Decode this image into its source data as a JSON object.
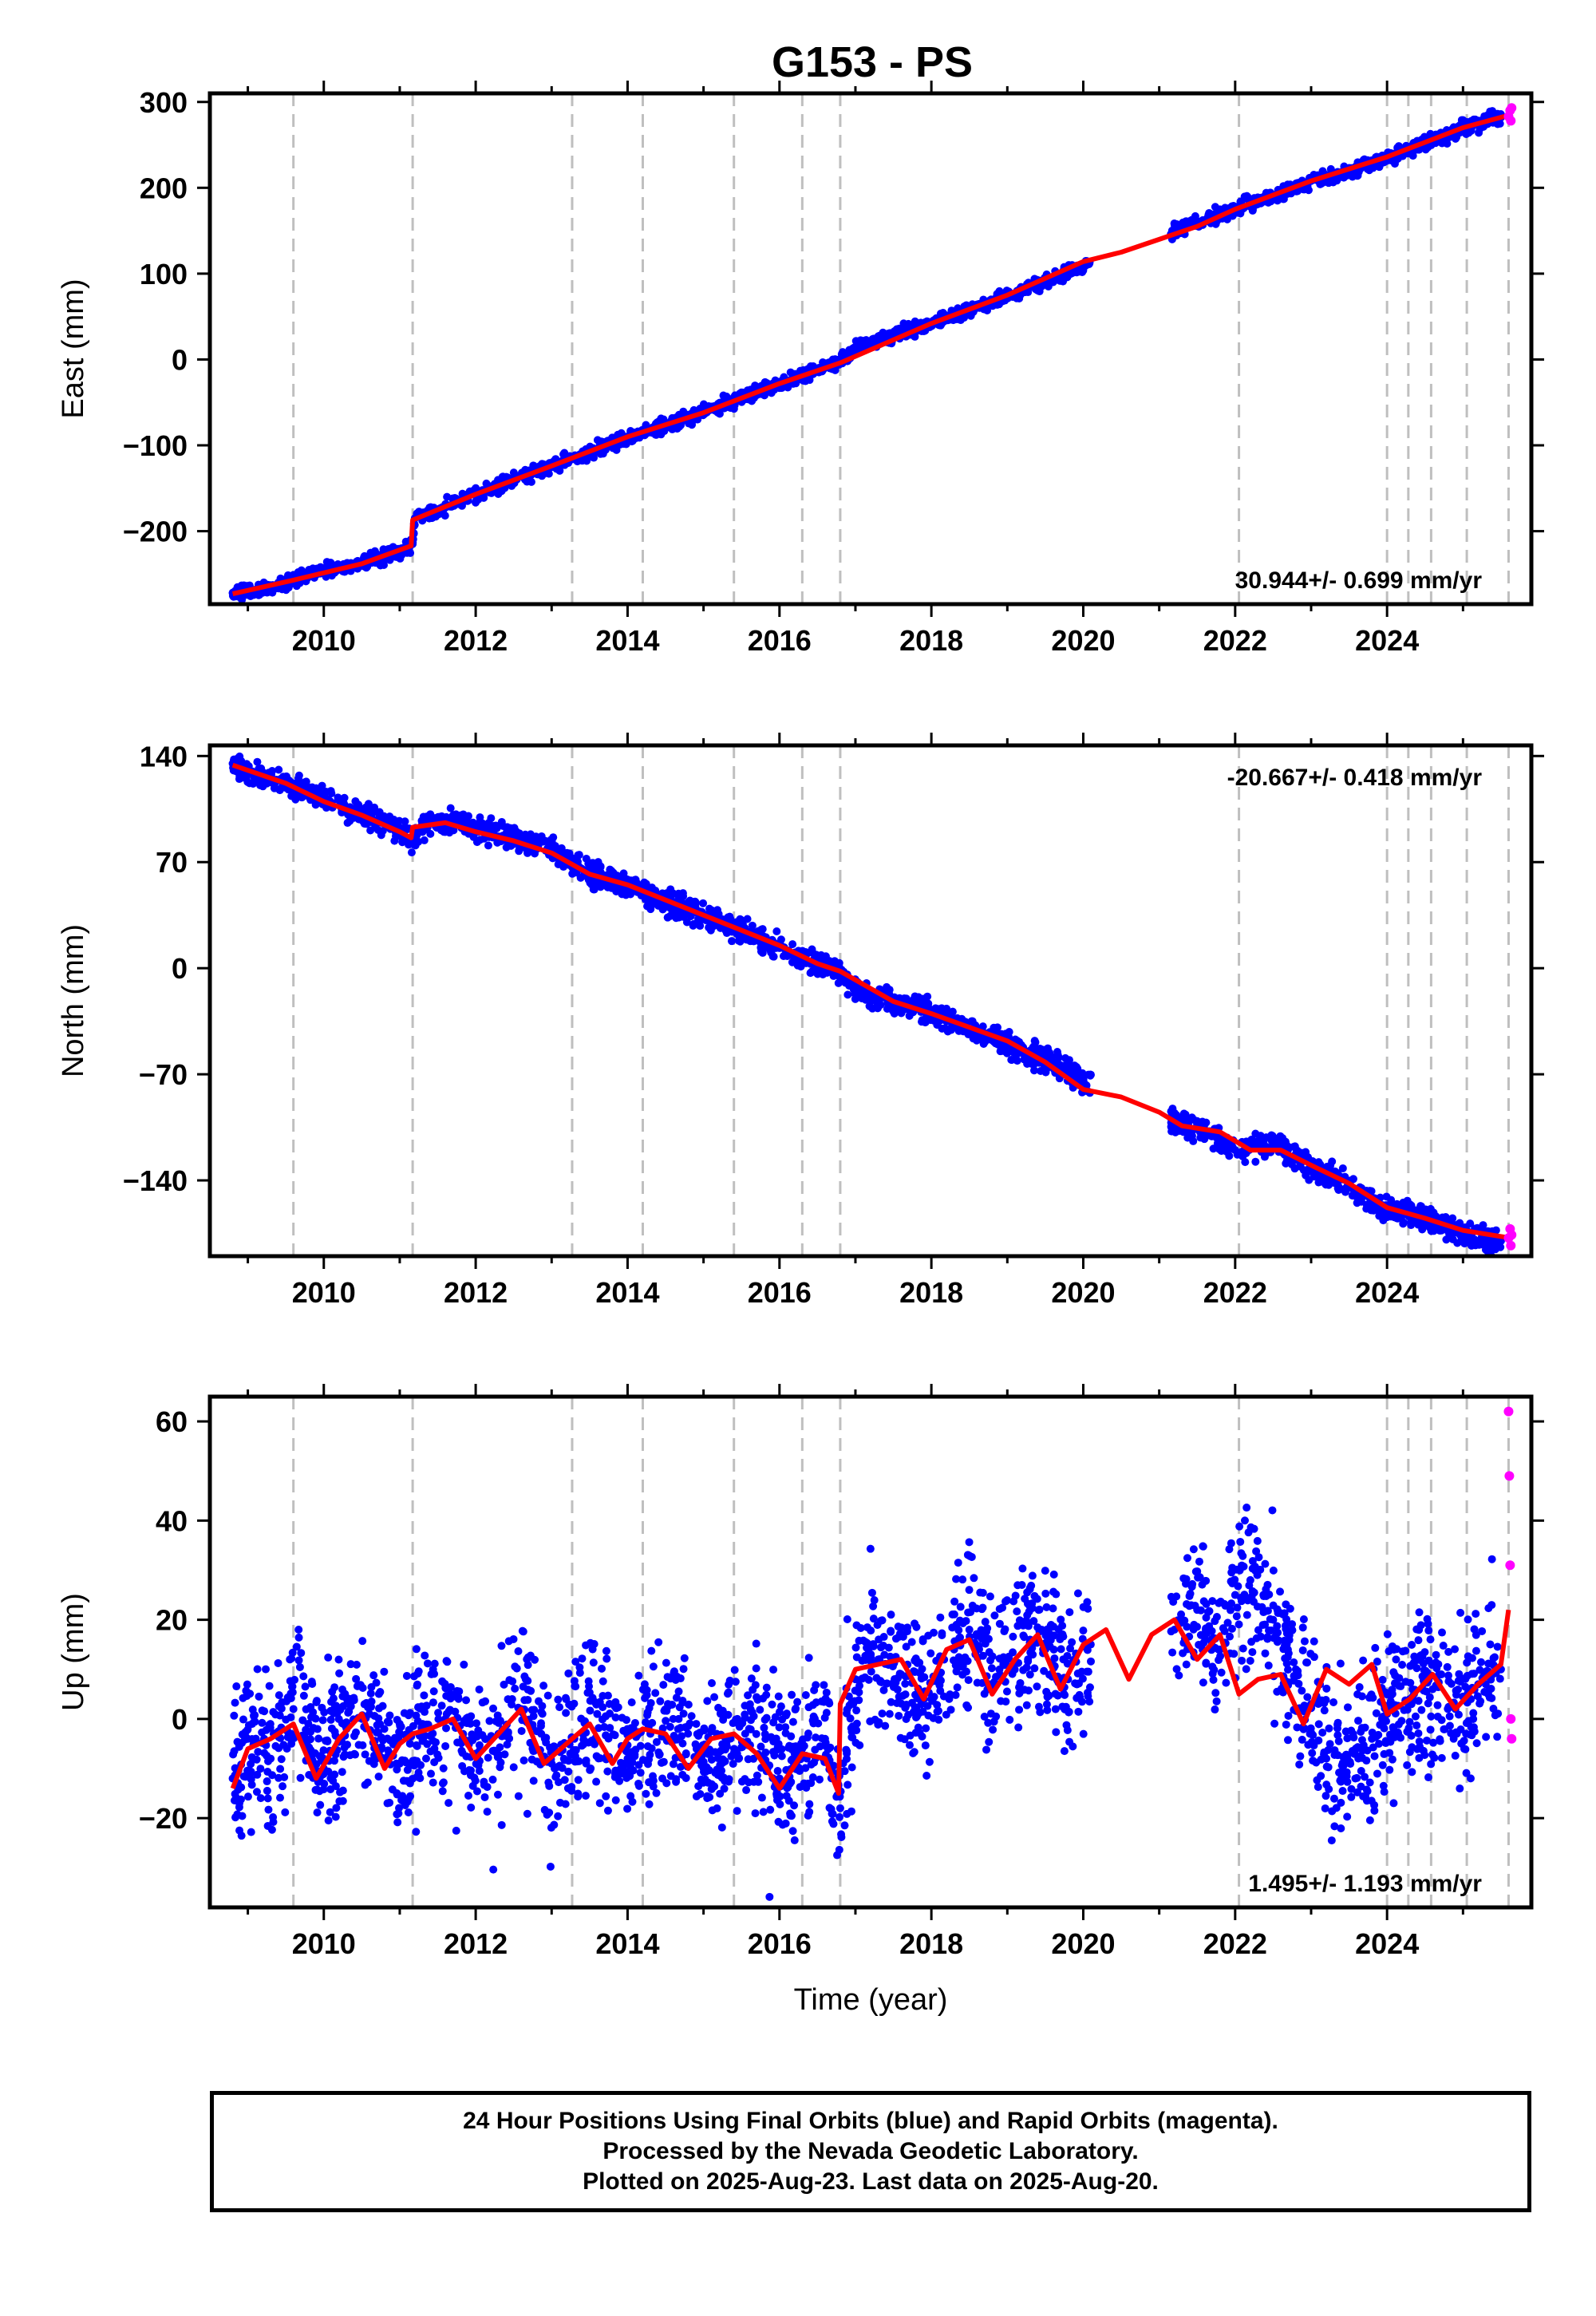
{
  "title": "G153 - PS",
  "footer": {
    "line1": "24 Hour Positions Using Final Orbits (blue) and Rapid Orbits (magenta).",
    "line2": "Processed by the Nevada Geodetic Laboratory.",
    "line3": "Plotted on 2025-Aug-23. Last data on 2025-Aug-20."
  },
  "colors": {
    "final": "#0000ff",
    "rapid": "#ff00ff",
    "model": "#ff0000",
    "event": "#bfbfbf"
  },
  "chart_data": [
    {
      "type": "scatter",
      "ylabel": "East (mm)",
      "xlabel": "",
      "xlim": [
        2008.5,
        2025.9
      ],
      "ylim": [
        -285,
        310
      ],
      "xticks": [
        2010,
        2012,
        2014,
        2016,
        2018,
        2020,
        2022,
        2024
      ],
      "yticks": [
        -200,
        -100,
        0,
        100,
        200,
        300
      ],
      "ytick_labels": [
        "−200",
        "−100",
        "0",
        "100",
        "200",
        "300"
      ],
      "rate_text": "30.944+/- 0.699 mm/yr",
      "rate_position": "bottom-right",
      "event_lines": [
        2009.6,
        2011.17,
        2013.27,
        2014.2,
        2015.4,
        2016.3,
        2016.8,
        2022.05,
        2024.0,
        2024.28,
        2024.58,
        2025.05,
        2025.6
      ],
      "series": [
        {
          "name": "Final Orbits",
          "marker": "dot",
          "x": [
            2008.8,
            2009.0,
            2009.3,
            2009.6,
            2010.0,
            2010.5,
            2011.0,
            2011.17,
            2011.2,
            2011.5,
            2012.0,
            2012.5,
            2013.0,
            2013.5,
            2014.0,
            2014.5,
            2015.0,
            2015.5,
            2016.0,
            2016.5,
            2016.8,
            2017.0,
            2017.5,
            2018.0,
            2018.5,
            2019.0,
            2019.5,
            2020.0,
            2021.2,
            2021.5,
            2022.0,
            2022.5,
            2022.9,
            2023.0,
            2023.5,
            2024.0,
            2024.5,
            2025.0,
            2025.5
          ],
          "y": [
            -272,
            -270,
            -266,
            -257,
            -246,
            -237,
            -224,
            -215,
            -185,
            -175,
            -157,
            -140,
            -124,
            -108,
            -90,
            -76,
            -62,
            -44,
            -28,
            -12,
            -4,
            14,
            28,
            42,
            58,
            75,
            90,
            110,
            150,
            160,
            175,
            190,
            205,
            208,
            218,
            235,
            252,
            270,
            282
          ]
        },
        {
          "name": "Rapid Orbits",
          "marker": "dot",
          "x": [
            2025.6,
            2025.62,
            2025.63,
            2025.64
          ],
          "y": [
            283,
            290,
            278,
            293
          ]
        },
        {
          "name": "Model",
          "marker": "line",
          "x": [
            2008.8,
            2009.6,
            2010.5,
            2011.15,
            2011.17,
            2012.0,
            2013.0,
            2014.0,
            2015.0,
            2016.0,
            2016.8,
            2018.0,
            2019.0,
            2020.0,
            2020.5,
            2021.0,
            2021.5,
            2022.0,
            2023.0,
            2024.0,
            2025.0,
            2025.62
          ],
          "y": [
            -273,
            -257,
            -238,
            -217,
            -187,
            -157,
            -124,
            -90,
            -62,
            -28,
            -4,
            42,
            75,
            114,
            125,
            140,
            155,
            175,
            208,
            236,
            270,
            285
          ]
        }
      ]
    },
    {
      "type": "scatter",
      "ylabel": "North (mm)",
      "xlabel": "",
      "xlim": [
        2008.5,
        2025.9
      ],
      "ylim": [
        -190,
        147
      ],
      "xticks": [
        2010,
        2012,
        2014,
        2016,
        2018,
        2020,
        2022,
        2024
      ],
      "yticks": [
        -140,
        -70,
        0,
        70,
        140
      ],
      "ytick_labels": [
        "−140",
        "−70",
        "0",
        "70",
        "140"
      ],
      "rate_text": "-20.667+/- 0.418 mm/yr",
      "rate_position": "top-right",
      "event_lines": [
        2009.6,
        2011.17,
        2013.27,
        2014.2,
        2015.4,
        2016.3,
        2016.8,
        2022.05,
        2024.0,
        2024.28,
        2024.58,
        2025.05,
        2025.6
      ],
      "series": [
        {
          "name": "Final Orbits",
          "marker": "dot",
          "x": [
            2008.8,
            2009.0,
            2009.5,
            2010.0,
            2010.5,
            2011.0,
            2011.17,
            2011.3,
            2011.7,
            2012.0,
            2012.5,
            2013.0,
            2013.5,
            2014.0,
            2014.5,
            2015.0,
            2015.5,
            2016.0,
            2016.5,
            2016.8,
            2017.0,
            2017.5,
            2018.0,
            2018.5,
            2019.0,
            2019.5,
            2020.0,
            2021.2,
            2021.5,
            2022.0,
            2022.5,
            2023.0,
            2023.5,
            2024.0,
            2024.5,
            2025.0,
            2025.5
          ],
          "y": [
            135,
            130,
            122,
            112,
            102,
            92,
            82,
            95,
            97,
            91,
            86,
            79,
            63,
            55,
            44,
            35,
            25,
            14,
            3,
            -2,
            -15,
            -22,
            -29,
            -40,
            -50,
            -60,
            -74,
            -103,
            -105,
            -120,
            -115,
            -130,
            -145,
            -158,
            -165,
            -175,
            -180
          ]
        },
        {
          "name": "Rapid Orbits",
          "marker": "dot",
          "x": [
            2025.6,
            2025.62,
            2025.63,
            2025.64
          ],
          "y": [
            -178,
            -172,
            -183,
            -176
          ]
        },
        {
          "name": "Model",
          "marker": "line",
          "x": [
            2008.8,
            2009.5,
            2010.0,
            2010.5,
            2011.0,
            2011.15,
            2011.17,
            2011.6,
            2012.0,
            2012.5,
            2013.0,
            2013.5,
            2014.0,
            2015.0,
            2016.0,
            2016.5,
            2016.8,
            2017.5,
            2018.0,
            2019.0,
            2019.5,
            2020.0,
            2020.5,
            2021.0,
            2021.3,
            2021.8,
            2022.2,
            2022.6,
            2023.0,
            2023.5,
            2024.0,
            2024.5,
            2025.0,
            2025.62
          ],
          "y": [
            134,
            122,
            110,
            101,
            90,
            86,
            93,
            96,
            90,
            84,
            76,
            62,
            55,
            35,
            15,
            3,
            -2,
            -22,
            -30,
            -48,
            -62,
            -80,
            -85,
            -95,
            -104,
            -108,
            -120,
            -120,
            -130,
            -142,
            -158,
            -165,
            -173,
            -178
          ]
        }
      ]
    },
    {
      "type": "scatter",
      "ylabel": "Up (mm)",
      "xlabel": "Time (year)",
      "xlim": [
        2008.5,
        2025.9
      ],
      "ylim": [
        -38,
        65
      ],
      "xticks": [
        2010,
        2012,
        2014,
        2016,
        2018,
        2020,
        2022,
        2024
      ],
      "yticks": [
        -20,
        0,
        20,
        40,
        60
      ],
      "ytick_labels": [
        "−20",
        "0",
        "20",
        "40",
        "60"
      ],
      "rate_text": "1.495+/- 1.193 mm/yr",
      "rate_position": "bottom-right",
      "event_lines": [
        2009.6,
        2011.17,
        2013.27,
        2014.2,
        2015.4,
        2016.3,
        2016.8,
        2022.05,
        2024.0,
        2024.28,
        2024.58,
        2025.05,
        2025.6
      ],
      "series": [
        {
          "name": "Final Orbits",
          "marker": "dot",
          "x": [
            2008.8,
            2009.0,
            2009.3,
            2009.6,
            2010.0,
            2010.3,
            2010.6,
            2011.0,
            2011.3,
            2011.6,
            2012.0,
            2012.3,
            2012.6,
            2013.0,
            2013.3,
            2013.6,
            2014.0,
            2014.3,
            2014.6,
            2015.0,
            2015.3,
            2015.6,
            2016.0,
            2016.3,
            2016.6,
            2016.8,
            2017.0,
            2017.3,
            2017.6,
            2018.0,
            2018.3,
            2018.5,
            2018.8,
            2019.0,
            2019.3,
            2019.5,
            2019.8,
            2021.2,
            2021.5,
            2021.8,
            2022.0,
            2022.2,
            2022.5,
            2022.8,
            2023.0,
            2023.2,
            2023.4,
            2023.6,
            2023.8,
            2024.0,
            2024.3,
            2024.6,
            2024.9,
            2025.2,
            2025.5
          ],
          "y": [
            -12,
            -4,
            -8,
            2,
            -10,
            -2,
            1,
            -9,
            -1,
            0,
            -7,
            -3,
            2,
            -9,
            -4,
            1,
            -8,
            -3,
            0,
            -10,
            -5,
            -2,
            -12,
            -6,
            -4,
            -18,
            8,
            12,
            9,
            4,
            14,
            18,
            7,
            12,
            16,
            14,
            8,
            18,
            22,
            14,
            25,
            28,
            20,
            10,
            3,
            -8,
            -12,
            -6,
            -4,
            1,
            4,
            6,
            2,
            7,
            10
          ]
        },
        {
          "name": "Rapid Orbits",
          "marker": "dot",
          "x": [
            2025.6,
            2025.61,
            2025.62,
            2025.63,
            2025.64
          ],
          "y": [
            62,
            49,
            31,
            0,
            -4
          ]
        },
        {
          "name": "Model",
          "marker": "line",
          "x": [
            2008.8,
            2009.0,
            2009.3,
            2009.6,
            2009.9,
            2010.2,
            2010.5,
            2010.8,
            2011.0,
            2011.17,
            2011.4,
            2011.7,
            2012.0,
            2012.3,
            2012.6,
            2012.9,
            2013.27,
            2013.5,
            2013.8,
            2014.0,
            2014.2,
            2014.5,
            2014.8,
            2015.1,
            2015.4,
            2015.7,
            2016.0,
            2016.3,
            2016.6,
            2016.78,
            2016.8,
            2017.0,
            2017.3,
            2017.6,
            2017.9,
            2018.2,
            2018.5,
            2018.8,
            2019.1,
            2019.4,
            2019.7,
            2020.0,
            2020.3,
            2020.6,
            2020.9,
            2021.2,
            2021.5,
            2021.8,
            2022.05,
            2022.3,
            2022.6,
            2022.9,
            2023.2,
            2023.5,
            2023.8,
            2024.0,
            2024.3,
            2024.6,
            2024.9,
            2025.2,
            2025.5,
            2025.6
          ],
          "y": [
            -14,
            -6,
            -4,
            -1,
            -12,
            -4,
            1,
            -10,
            -5,
            -3,
            -2,
            0,
            -8,
            -3,
            2,
            -9,
            -4,
            -1,
            -9,
            -4,
            -2,
            -3,
            -10,
            -4,
            -3,
            -7,
            -14,
            -7,
            -8,
            -15,
            3,
            10,
            11,
            12,
            4,
            14,
            16,
            5,
            12,
            17,
            6,
            15,
            18,
            8,
            17,
            20,
            12,
            17,
            5,
            8,
            9,
            -1,
            10,
            7,
            11,
            1,
            4,
            9,
            2,
            7,
            11,
            22
          ]
        }
      ]
    }
  ]
}
